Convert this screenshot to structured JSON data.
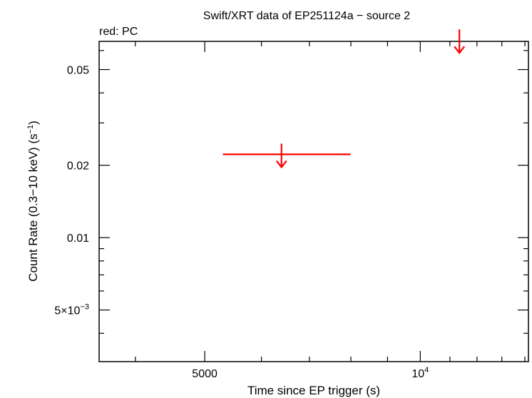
{
  "chart_data": {
    "type": "scatter",
    "title": "Swift/XRT data of EP251124a − source 2",
    "subtitle": "red: PC",
    "xlabel": "Time since EP trigger (s)",
    "ylabel_main": "Count Rate (0.3−10 keV) (s",
    "ylabel_sup": "−1",
    "ylabel_close": ")",
    "x_scale": "log",
    "y_scale": "log",
    "xlim": [
      3560,
      14160
    ],
    "ylim": [
      0.00305,
      0.0655
    ],
    "x_ticks": [
      {
        "value": 5000,
        "label": "5000",
        "sup": ""
      },
      {
        "value": 10000,
        "label": "10",
        "sup": "4"
      }
    ],
    "x_minor_ticks": [
      4000,
      6000,
      7000,
      8000,
      9000,
      11000,
      12000,
      13000,
      14000
    ],
    "y_ticks": [
      {
        "value": 0.05,
        "label": "0.05",
        "sup": ""
      },
      {
        "value": 0.02,
        "label": "0.02",
        "sup": ""
      },
      {
        "value": 0.01,
        "label": "0.01",
        "sup": ""
      },
      {
        "value": 0.005,
        "label": "5×10",
        "sup": "−3"
      }
    ],
    "y_minor_ticks": [
      0.004,
      0.006,
      0.007,
      0.008,
      0.009,
      0.03,
      0.04,
      0.06
    ],
    "series": [
      {
        "name": "PC",
        "color": "#ff0000",
        "upper_limits": [
          {
            "x": 6400,
            "x_lo": 5300,
            "x_hi": 7990,
            "y": 0.0222
          },
          {
            "x": 11340,
            "x_lo": 11340,
            "x_hi": 11340,
            "y": 0.0663
          }
        ]
      }
    ],
    "grid": false
  }
}
